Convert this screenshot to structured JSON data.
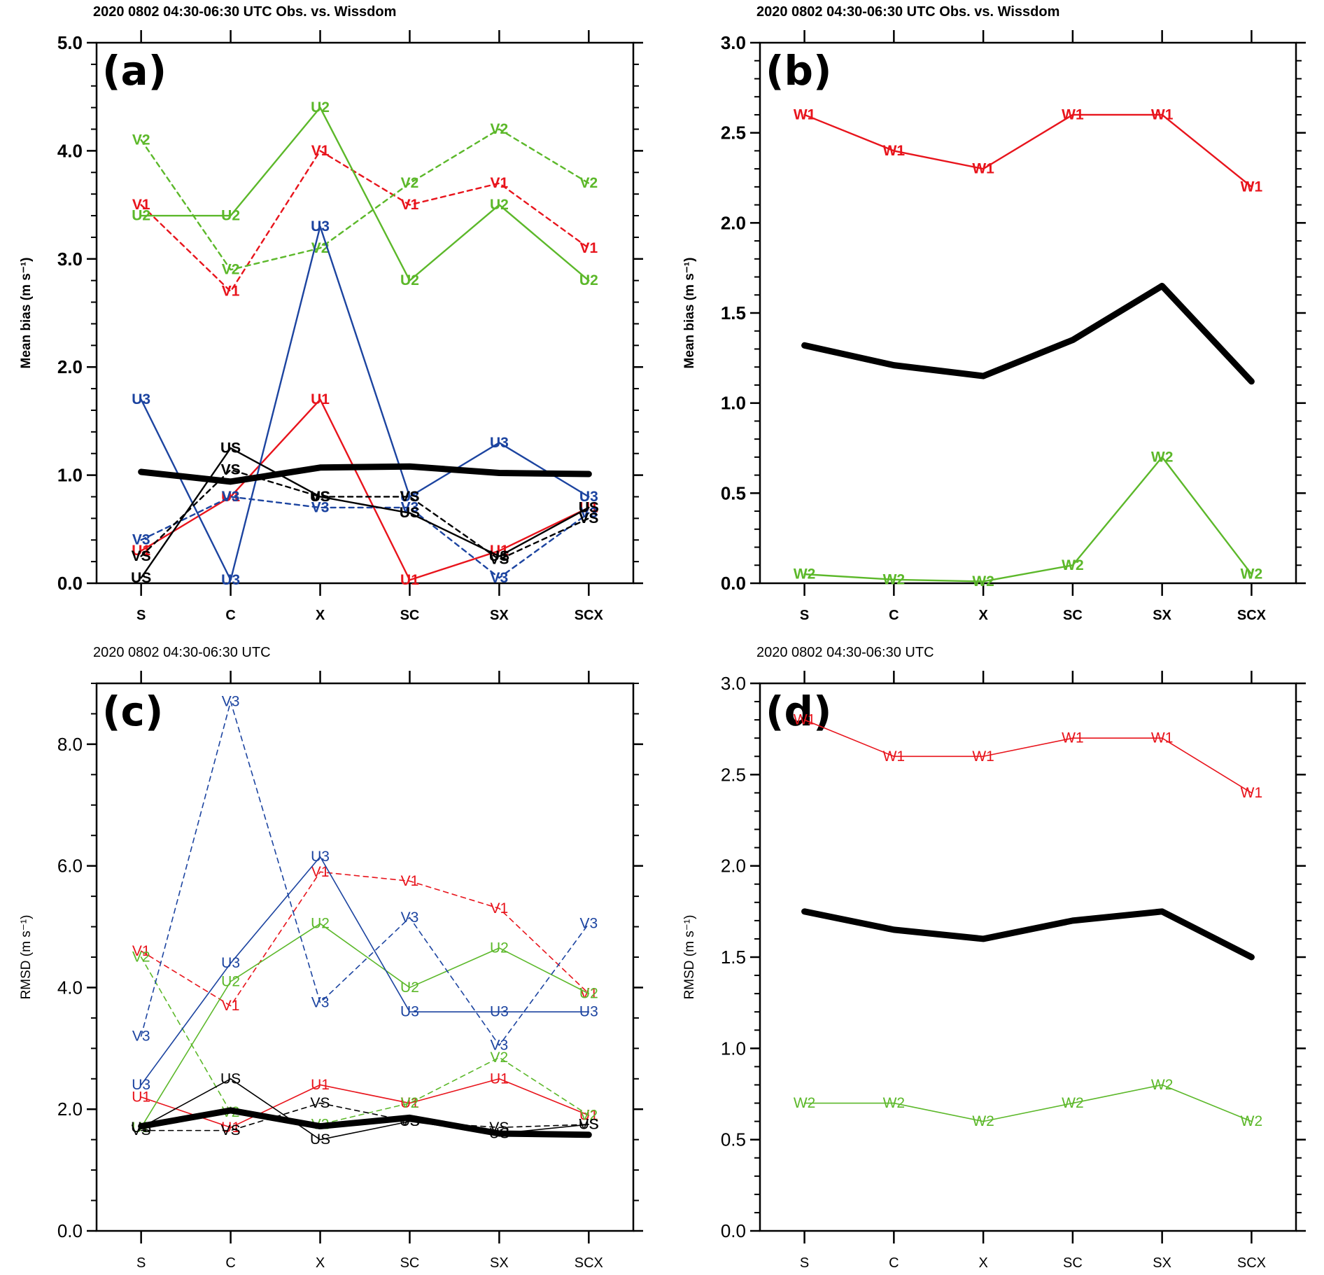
{
  "figure": {
    "x_categories": [
      "S",
      "C",
      "X",
      "SC",
      "SX",
      "SCX"
    ]
  },
  "chart_data": [
    {
      "id": "a",
      "type": "line",
      "panel_label": "(a)",
      "title": "2020 0802 04:30-06:30 UTC  Obs. vs. Wissdom",
      "xlabel": "",
      "ylabel": "Mean bias (m s⁻¹)",
      "ylim": [
        0,
        5
      ],
      "yticks": [
        "0.0",
        "1.0",
        "2.0",
        "3.0",
        "4.0",
        "5.0"
      ],
      "ytick_values": [
        0,
        1,
        2,
        3,
        4,
        5
      ],
      "categories": [
        "S",
        "C",
        "X",
        "SC",
        "SX",
        "SCX"
      ],
      "bold_labels": true,
      "grid": false,
      "legend": "none",
      "series": [
        {
          "name": "U1",
          "marker": "U1",
          "color": "#e8141c",
          "dash": "solid",
          "values": [
            0.3,
            0.8,
            1.7,
            0.03,
            0.3,
            0.7
          ]
        },
        {
          "name": "V1",
          "marker": "V1",
          "color": "#e8141c",
          "dash": "dashed",
          "values": [
            3.5,
            2.7,
            4.0,
            3.5,
            3.7,
            3.1
          ]
        },
        {
          "name": "U2",
          "marker": "U2",
          "color": "#5cb82a",
          "dash": "solid",
          "values": [
            3.4,
            3.4,
            4.4,
            2.8,
            3.5,
            2.8
          ]
        },
        {
          "name": "V2",
          "marker": "V2",
          "color": "#5cb82a",
          "dash": "dashed",
          "values": [
            4.1,
            2.9,
            3.1,
            3.7,
            4.2,
            3.7
          ]
        },
        {
          "name": "U3",
          "marker": "U3",
          "color": "#1c44a0",
          "dash": "solid",
          "values": [
            1.7,
            0.03,
            3.3,
            0.8,
            1.3,
            0.8
          ]
        },
        {
          "name": "V3",
          "marker": "V3",
          "color": "#1c44a0",
          "dash": "dashed",
          "values": [
            0.4,
            0.8,
            0.7,
            0.7,
            0.05,
            0.65
          ]
        },
        {
          "name": "US",
          "marker": "US",
          "color": "#000000",
          "dash": "solid",
          "values": [
            0.05,
            1.25,
            0.8,
            0.65,
            0.25,
            0.7
          ]
        },
        {
          "name": "VS",
          "marker": "VS",
          "color": "#000000",
          "dash": "dashed",
          "values": [
            0.25,
            1.05,
            0.8,
            0.8,
            0.22,
            0.6
          ]
        },
        {
          "name": "Mean",
          "marker": "",
          "color": "#000000",
          "dash": "thick",
          "values": [
            1.03,
            0.94,
            1.07,
            1.08,
            1.02,
            1.01
          ]
        }
      ]
    },
    {
      "id": "b",
      "type": "line",
      "panel_label": "(b)",
      "title": "2020 0802 04:30-06:30 UTC  Obs. vs. Wissdom",
      "xlabel": "",
      "ylabel": "Mean bias (m s⁻¹)",
      "ylim": [
        0,
        3
      ],
      "yticks": [
        "0.0",
        "0.5",
        "1.0",
        "1.5",
        "2.0",
        "2.5",
        "3.0"
      ],
      "ytick_values": [
        0,
        0.5,
        1,
        1.5,
        2,
        2.5,
        3
      ],
      "categories": [
        "S",
        "C",
        "X",
        "SC",
        "SX",
        "SCX"
      ],
      "bold_labels": true,
      "grid": false,
      "legend": "none",
      "series": [
        {
          "name": "W1",
          "marker": "W1",
          "color": "#e8141c",
          "dash": "solid",
          "values": [
            2.6,
            2.4,
            2.3,
            2.6,
            2.6,
            2.2
          ]
        },
        {
          "name": "W2",
          "marker": "W2",
          "color": "#5cb82a",
          "dash": "solid",
          "values": [
            0.05,
            0.02,
            0.01,
            0.1,
            0.7,
            0.05
          ]
        },
        {
          "name": "Mean",
          "marker": "",
          "color": "#000000",
          "dash": "thick",
          "values": [
            1.32,
            1.21,
            1.15,
            1.35,
            1.65,
            1.12
          ]
        }
      ]
    },
    {
      "id": "c",
      "type": "line",
      "panel_label": "(c)",
      "title": "2020 0802 04:30-06:30 UTC",
      "xlabel": "",
      "ylabel": "RMSD (m s⁻¹)",
      "ylim": [
        0,
        9
      ],
      "yticks": [
        "0.0",
        "2.0",
        "4.0",
        "6.0",
        "8.0"
      ],
      "ytick_values": [
        0,
        2,
        4,
        6,
        8
      ],
      "categories": [
        "S",
        "C",
        "X",
        "SC",
        "SX",
        "SCX"
      ],
      "bold_labels": false,
      "grid": false,
      "legend": "none",
      "series": [
        {
          "name": "U1",
          "marker": "U1",
          "color": "#e8141c",
          "dash": "solid",
          "values": [
            2.2,
            1.7,
            2.4,
            2.1,
            2.5,
            1.9
          ]
        },
        {
          "name": "V1",
          "marker": "V1",
          "color": "#e8141c",
          "dash": "dashed",
          "values": [
            4.6,
            3.7,
            5.9,
            5.75,
            5.3,
            3.9
          ]
        },
        {
          "name": "U2",
          "marker": "U2",
          "color": "#5cb82a",
          "dash": "solid",
          "values": [
            1.7,
            4.1,
            5.05,
            4.0,
            4.65,
            3.9
          ]
        },
        {
          "name": "V2",
          "marker": "V2",
          "color": "#5cb82a",
          "dash": "dashed",
          "values": [
            4.5,
            1.95,
            1.75,
            2.1,
            2.85,
            1.9
          ]
        },
        {
          "name": "U3",
          "marker": "U3",
          "color": "#1c44a0",
          "dash": "solid",
          "values": [
            2.4,
            4.4,
            6.15,
            3.6,
            3.6,
            3.6
          ]
        },
        {
          "name": "V3",
          "marker": "V3",
          "color": "#1c44a0",
          "dash": "dashed",
          "values": [
            3.2,
            8.7,
            3.75,
            5.15,
            3.05,
            5.05
          ]
        },
        {
          "name": "US",
          "marker": "US",
          "color": "#000000",
          "dash": "solid",
          "values": [
            1.7,
            2.5,
            1.5,
            1.8,
            1.6,
            1.75
          ]
        },
        {
          "name": "VS",
          "marker": "VS",
          "color": "#000000",
          "dash": "dashed",
          "values": [
            1.65,
            1.65,
            2.1,
            1.8,
            1.7,
            1.75
          ]
        },
        {
          "name": "Mean",
          "marker": "",
          "color": "#000000",
          "dash": "thick",
          "values": [
            1.72,
            1.98,
            1.72,
            1.86,
            1.6,
            1.58
          ]
        }
      ]
    },
    {
      "id": "d",
      "type": "line",
      "panel_label": "(d)",
      "title": "2020 0802 04:30-06:30 UTC",
      "xlabel": "",
      "ylabel": "RMSD (m s⁻¹)",
      "ylim": [
        0,
        3
      ],
      "yticks": [
        "0.0",
        "0.5",
        "1.0",
        "1.5",
        "2.0",
        "2.5",
        "3.0"
      ],
      "ytick_values": [
        0,
        0.5,
        1,
        1.5,
        2,
        2.5,
        3
      ],
      "categories": [
        "S",
        "C",
        "X",
        "SC",
        "SX",
        "SCX"
      ],
      "bold_labels": false,
      "grid": false,
      "legend": "none",
      "series": [
        {
          "name": "W1",
          "marker": "W1",
          "color": "#e8141c",
          "dash": "solid",
          "values": [
            2.8,
            2.6,
            2.6,
            2.7,
            2.7,
            2.4
          ]
        },
        {
          "name": "W2",
          "marker": "W2",
          "color": "#5cb82a",
          "dash": "solid",
          "values": [
            0.7,
            0.7,
            0.6,
            0.7,
            0.8,
            0.6
          ]
        },
        {
          "name": "Mean",
          "marker": "",
          "color": "#000000",
          "dash": "thick",
          "values": [
            1.75,
            1.65,
            1.6,
            1.7,
            1.75,
            1.5
          ]
        }
      ]
    }
  ]
}
